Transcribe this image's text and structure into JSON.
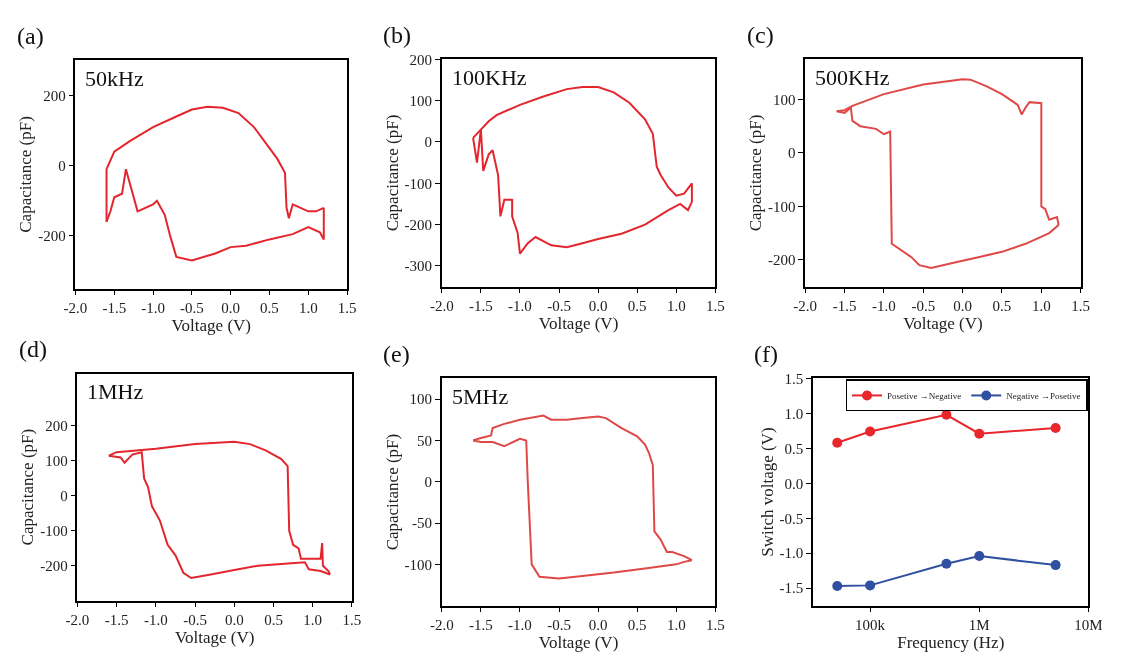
{
  "chart_data": [
    {
      "type": "line",
      "title": "(a)",
      "annotations": [
        "50kHz"
      ],
      "xlabel": "Voltage (V)",
      "ylabel": "Capacitance (pF)",
      "xlim": [
        -2,
        1.5
      ],
      "xticks": [
        {
          "value": -2,
          "label": "-2.0"
        },
        {
          "value": -1.5,
          "label": "-1.5"
        },
        {
          "value": -1,
          "label": "-1.0"
        },
        {
          "value": -0.5,
          "label": "-0.5"
        },
        {
          "value": 0,
          "label": "0.0"
        },
        {
          "value": 0.5,
          "label": "0.5"
        },
        {
          "value": 1,
          "label": "1.0"
        },
        {
          "value": 1.5,
          "label": "1.5"
        }
      ],
      "ylim": [
        -350,
        300
      ],
      "yticks": [
        -200,
        0,
        200
      ],
      "marker": "none",
      "line_style": "solid",
      "series": [
        {
          "color": "#e3262e",
          "x": [
            -1.6,
            -1.6,
            -1.5,
            -1.3,
            -1.0,
            -0.7,
            -0.5,
            -0.3,
            -0.1,
            0.1,
            0.3,
            0.5,
            0.6,
            0.7,
            0.72,
            0.75,
            0.8,
            0.9,
            1.0,
            1.1,
            1.2
          ],
          "values": [
            -160,
            -10,
            40,
            70,
            110,
            140,
            160,
            168,
            165,
            150,
            110,
            50,
            20,
            -20,
            -120,
            -150,
            -110,
            -120,
            -130,
            -130,
            -120
          ]
        },
        {
          "color": "#e3262e",
          "x": [
            1.2,
            1.2,
            1.15,
            1.0,
            0.8,
            0.5,
            0.2,
            0.0,
            -0.2,
            -0.5,
            -0.7,
            -0.78,
            -0.85,
            -0.95,
            -1.0,
            -1.2,
            -1.35,
            -1.4,
            -1.5,
            -1.55,
            -1.6
          ],
          "values": [
            -120,
            -210,
            -190,
            -175,
            -195,
            -210,
            -228,
            -232,
            -250,
            -270,
            -260,
            -200,
            -140,
            -100,
            -110,
            -130,
            -10,
            -80,
            -90,
            -130,
            -160
          ]
        }
      ]
    },
    {
      "type": "line",
      "title": "(b)",
      "annotations": [
        "100KHz"
      ],
      "xlabel": "Voltage (V)",
      "ylabel": "Capacitance (pF)",
      "xlim": [
        -2,
        1.5
      ],
      "xticks": [
        {
          "value": -2,
          "label": "-2.0"
        },
        {
          "value": -1.5,
          "label": "-1.5"
        },
        {
          "value": -1,
          "label": "-1.0"
        },
        {
          "value": -0.5,
          "label": "-0.5"
        },
        {
          "value": 0,
          "label": "0.0"
        },
        {
          "value": 0.5,
          "label": "0.5"
        },
        {
          "value": 1,
          "label": "1.0"
        },
        {
          "value": 1.5,
          "label": "1.5"
        }
      ],
      "ylim": [
        -350,
        200
      ],
      "yticks": [
        -300,
        -200,
        -100,
        0,
        100,
        200
      ],
      "marker": "none",
      "line_style": "solid",
      "series": [
        {
          "color": "#e3262e",
          "x": [
            -1.6,
            -1.5,
            -1.4,
            -1.3,
            -1.0,
            -0.7,
            -0.4,
            -0.2,
            0.0,
            0.2,
            0.4,
            0.6,
            0.7,
            0.75,
            0.8,
            0.9,
            1.0,
            1.1,
            1.2
          ],
          "values": [
            10,
            30,
            50,
            65,
            90,
            110,
            128,
            133,
            133,
            120,
            95,
            55,
            20,
            -60,
            -80,
            -110,
            -130,
            -125,
            -100
          ]
        },
        {
          "color": "#e3262e",
          "x": [
            1.2,
            1.2,
            1.15,
            1.05,
            0.9,
            0.6,
            0.3,
            0.0,
            -0.2,
            -0.4,
            -0.6,
            -0.8,
            -0.9,
            -1.0,
            -1.03,
            -1.1,
            -1.1,
            -1.2,
            -1.25,
            -1.28,
            -1.35,
            -1.4,
            -1.47,
            -1.5,
            -1.55,
            -1.6
          ],
          "values": [
            -100,
            -145,
            -165,
            -150,
            -165,
            -200,
            -222,
            -235,
            -245,
            -255,
            -250,
            -230,
            -245,
            -270,
            -220,
            -180,
            -140,
            -140,
            -180,
            -80,
            -20,
            -30,
            -70,
            30,
            -50,
            10
          ]
        }
      ]
    },
    {
      "type": "line",
      "title": "(c)",
      "annotations": [
        "500KHz"
      ],
      "xlabel": "Voltage (V)",
      "ylabel": "Capacitance (pF)",
      "xlim": [
        -2,
        1.5
      ],
      "xticks": [
        {
          "value": -2,
          "label": "-2.0"
        },
        {
          "value": -1.5,
          "label": "-1.5"
        },
        {
          "value": -1,
          "label": "-1.0"
        },
        {
          "value": -0.5,
          "label": "-0.5"
        },
        {
          "value": 0,
          "label": "0.0"
        },
        {
          "value": 0.5,
          "label": "0.5"
        },
        {
          "value": 1,
          "label": "1.0"
        },
        {
          "value": 1.5,
          "label": "1.5"
        }
      ],
      "ylim": [
        -250,
        175
      ],
      "yticks": [
        -200,
        -100,
        0,
        100
      ],
      "marker": "none",
      "line_style": "solid",
      "series": [
        {
          "color": "#e04848",
          "x": [
            -1.6,
            -1.5,
            -1.4,
            -1.0,
            -0.5,
            0.0,
            0.1,
            0.3,
            0.5,
            0.7,
            0.75,
            0.8,
            0.85,
            1.0,
            1.0,
            1.05,
            1.1,
            1.2,
            1.22
          ],
          "values": [
            78,
            80,
            88,
            110,
            128,
            138,
            137,
            125,
            110,
            90,
            72,
            85,
            95,
            93,
            -100,
            -105,
            -125,
            -120,
            -135
          ]
        },
        {
          "color": "#e04848",
          "x": [
            1.22,
            1.1,
            0.8,
            0.5,
            0.2,
            -0.1,
            -0.4,
            -0.55,
            -0.65,
            -0.9,
            -0.92,
            -1.0,
            -1.1,
            -1.3,
            -1.4,
            -1.42,
            -1.5,
            -1.6
          ],
          "values": [
            -135,
            -150,
            -170,
            -185,
            -195,
            -205,
            -215,
            -210,
            -195,
            -170,
            40,
            35,
            45,
            50,
            60,
            85,
            75,
            78
          ]
        }
      ]
    },
    {
      "type": "line",
      "title": "(d)",
      "annotations": [
        "1MHz"
      ],
      "xlabel": "Voltage (V)",
      "ylabel": "Capacitance (pF)",
      "xlim": [
        -2,
        1.5
      ],
      "xticks": [
        {
          "value": -2,
          "label": "-2.0"
        },
        {
          "value": -1.5,
          "label": "-1.5"
        },
        {
          "value": -1,
          "label": "-1.0"
        },
        {
          "value": -0.5,
          "label": "-0.5"
        },
        {
          "value": 0,
          "label": "0.0"
        },
        {
          "value": 0.5,
          "label": "0.5"
        },
        {
          "value": 1,
          "label": "1.0"
        },
        {
          "value": 1.5,
          "label": "1.5"
        }
      ],
      "ylim": [
        -300,
        350
      ],
      "yticks": [
        -200,
        -100,
        0,
        100,
        200
      ],
      "marker": "none",
      "line_style": "solid",
      "series": [
        {
          "color": "#e3262e",
          "x": [
            -1.6,
            -1.5,
            -1.0,
            -0.5,
            0.0,
            0.2,
            0.4,
            0.6,
            0.68,
            0.7,
            0.75,
            0.82,
            0.85,
            0.95,
            1.1,
            1.12,
            1.13,
            1.2,
            1.22
          ],
          "values": [
            115,
            125,
            135,
            148,
            155,
            148,
            130,
            105,
            85,
            -100,
            -140,
            -150,
            -180,
            -180,
            -180,
            -135,
            -200,
            -215,
            -225
          ]
        },
        {
          "color": "#e3262e",
          "x": [
            1.22,
            1.1,
            0.95,
            0.9,
            0.6,
            0.3,
            0.0,
            -0.3,
            -0.55,
            -0.65,
            -0.75,
            -0.85,
            -0.95,
            -1.05,
            -1.1,
            -1.15,
            -1.18,
            -1.3,
            -1.4,
            -1.45,
            -1.6
          ],
          "values": [
            -225,
            -215,
            -210,
            -190,
            -195,
            -200,
            -212,
            -225,
            -235,
            -220,
            -170,
            -140,
            -70,
            -30,
            25,
            50,
            125,
            118,
            95,
            110,
            115
          ]
        }
      ]
    },
    {
      "type": "line",
      "title": "(e)",
      "annotations": [
        "5MHz"
      ],
      "xlabel": "Voltage (V)",
      "ylabel": "Capacitance (pF)",
      "xlim": [
        -2,
        1.5
      ],
      "xticks": [
        {
          "value": -2,
          "label": "-2.0"
        },
        {
          "value": -1.5,
          "label": "-1.5"
        },
        {
          "value": -1,
          "label": "-1.0"
        },
        {
          "value": -0.5,
          "label": "-0.5"
        },
        {
          "value": 0,
          "label": "0.0"
        },
        {
          "value": 0.5,
          "label": "0.5"
        },
        {
          "value": 1,
          "label": "1.0"
        },
        {
          "value": 1.5,
          "label": "1.5"
        }
      ],
      "ylim": [
        -150,
        125
      ],
      "yticks": [
        -100,
        -50,
        0,
        50,
        100
      ],
      "marker": "none",
      "line_style": "solid",
      "series": [
        {
          "color": "#e04848",
          "x": [
            -1.6,
            -1.5,
            -1.37,
            -1.35,
            -1.2,
            -1.0,
            -0.7,
            -0.6,
            -0.4,
            -0.2,
            0.0,
            0.1,
            0.3,
            0.5,
            0.6,
            0.65,
            0.7,
            0.72,
            0.8,
            0.88,
            0.95,
            1.1,
            1.2
          ],
          "values": [
            50,
            53,
            56,
            65,
            70,
            75,
            80,
            75,
            75,
            77,
            79,
            77,
            65,
            55,
            45,
            35,
            20,
            -60,
            -70,
            -85,
            -85,
            -90,
            -95
          ]
        },
        {
          "color": "#e04848",
          "x": [
            1.2,
            1.1,
            1.0,
            0.6,
            0.2,
            -0.2,
            -0.5,
            -0.75,
            -0.85,
            -0.9,
            -0.92,
            -1.0,
            -1.2,
            -1.35,
            -1.5,
            -1.6
          ],
          "values": [
            -95,
            -97,
            -100,
            -105,
            -110,
            -114,
            -117,
            -115,
            -100,
            0,
            50,
            52,
            43,
            48,
            48,
            50
          ]
        }
      ]
    },
    {
      "type": "line",
      "title": "(f)",
      "xlabel": "Frequency (Hz)",
      "ylabel": "Switch voltage (V)",
      "log": "x",
      "xlim": [
        30000,
        10000000
      ],
      "xticks": [
        {
          "value": 100000,
          "label": "100k"
        },
        {
          "value": 1000000,
          "label": "1M"
        },
        {
          "value": 10000000,
          "label": "10M"
        }
      ],
      "ylim": [
        -1.75,
        1.5
      ],
      "yticks": [
        {
          "value": -1.5,
          "label": "-1.5"
        },
        {
          "value": -1,
          "label": "-1.0"
        },
        {
          "value": -0.5,
          "label": "-0.5"
        },
        {
          "value": 0,
          "label": "0.0"
        },
        {
          "value": 0.5,
          "label": "0.5"
        },
        {
          "value": 1,
          "label": "1.0"
        },
        {
          "value": 1.5,
          "label": "1.5"
        }
      ],
      "marker": "circle",
      "line_style": "solid",
      "legend": "top right",
      "x": [
        50000,
        100000,
        500000,
        1000000,
        5000000
      ],
      "series": [
        {
          "name": "Posetive →Negative",
          "color": "#e8262b",
          "values": [
            0.58,
            0.74,
            0.98,
            0.71,
            0.79
          ]
        },
        {
          "name": "Negative →Posetive",
          "color": "#2f4fa0",
          "values": [
            -1.47,
            -1.46,
            -1.15,
            -1.04,
            -1.17
          ]
        }
      ]
    }
  ]
}
